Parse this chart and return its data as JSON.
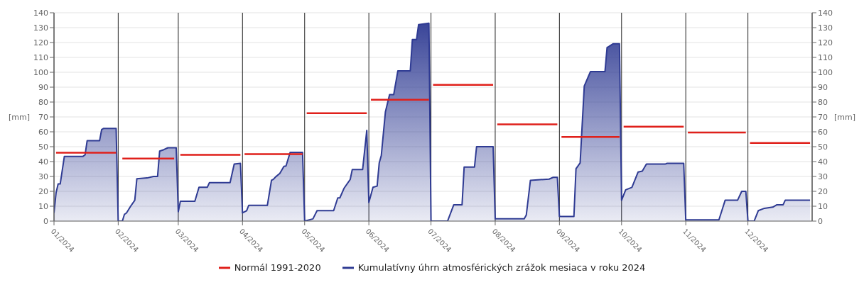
{
  "chart_data": {
    "type": "area",
    "ylabel": "[mm]",
    "y2label": "[mm]",
    "xlim": [
      "2024-01-01",
      "2025-01-01"
    ],
    "xticks": [
      {
        "value": "2024-01-01",
        "label": "01/2024"
      },
      {
        "value": "2024-02-01",
        "label": "02/2024"
      },
      {
        "value": "2024-03-01",
        "label": "03/2024"
      },
      {
        "value": "2024-04-01",
        "label": "04/2024"
      },
      {
        "value": "2024-05-01",
        "label": "05/2024"
      },
      {
        "value": "2024-06-01",
        "label": "06/2024"
      },
      {
        "value": "2024-07-01",
        "label": "07/2024"
      },
      {
        "value": "2024-08-01",
        "label": "08/2024"
      },
      {
        "value": "2024-09-01",
        "label": "09/2024"
      },
      {
        "value": "2024-10-01",
        "label": "10/2024"
      },
      {
        "value": "2024-11-01",
        "label": "11/2024"
      },
      {
        "value": "2024-12-01",
        "label": "12/2024"
      }
    ],
    "ylim": [
      0,
      140
    ],
    "yticks": [
      0,
      10,
      20,
      30,
      40,
      50,
      60,
      70,
      80,
      90,
      100,
      110,
      120,
      130,
      140
    ],
    "y2lim": [
      0,
      140
    ],
    "y2ticks": [
      0,
      10,
      20,
      30,
      40,
      50,
      60,
      70,
      80,
      90,
      100,
      110,
      120,
      130,
      140
    ],
    "grid": true,
    "legend": "bottom",
    "marker": "none",
    "line_style": "solid",
    "series": [
      {
        "name": "Normál 1991-2020",
        "type": "line",
        "color": "#e0201b",
        "x": [
          "2024-01-02",
          "2024-01-31",
          "2024-02-01",
          "2024-02-03",
          "2024-02-28",
          "2024-03-01",
          "2024-03-02",
          "2024-03-31",
          "2024-04-01",
          "2024-04-02",
          "2024-04-30",
          "2024-05-01",
          "2024-05-02",
          "2024-05-31",
          "2024-06-01",
          "2024-06-02",
          "2024-06-30",
          "2024-07-01",
          "2024-07-02",
          "2024-07-31",
          "2024-08-01",
          "2024-08-02",
          "2024-08-31",
          "2024-09-01",
          "2024-09-02",
          "2024-09-30",
          "2024-10-01",
          "2024-10-02",
          "2024-10-31",
          "2024-11-01",
          "2024-11-02",
          "2024-11-30",
          "2024-12-01",
          "2024-12-02",
          "2024-12-31"
        ],
        "values": [
          46,
          46,
          null,
          42,
          42,
          null,
          44.5,
          44.5,
          null,
          45,
          45,
          null,
          72.5,
          72.5,
          null,
          81.5,
          81.5,
          null,
          91.5,
          91.5,
          null,
          65,
          65,
          null,
          56.5,
          56.5,
          null,
          63.5,
          63.5,
          null,
          59.5,
          59.5,
          null,
          52.5,
          52.5
        ]
      },
      {
        "name": "Kumulatívny úhrn atmosférických zrážok mesiaca v roku 2024",
        "color": "#2f3b93",
        "x": [
          "2024-01-01",
          "2024-01-02",
          "2024-01-03",
          "2024-01-04",
          "2024-01-06",
          "2024-01-15",
          "2024-01-16",
          "2024-01-17",
          "2024-01-23",
          "2024-01-24",
          "2024-01-25",
          "2024-01-31",
          "2024-02-01",
          "2024-02-03",
          "2024-02-04",
          "2024-02-05",
          "2024-02-07",
          "2024-02-09",
          "2024-02-10",
          "2024-02-15",
          "2024-02-18",
          "2024-02-20",
          "2024-02-21",
          "2024-02-23",
          "2024-02-25",
          "2024-02-29",
          "2024-03-01",
          "2024-03-02",
          "2024-03-09",
          "2024-03-11",
          "2024-03-15",
          "2024-03-16",
          "2024-03-26",
          "2024-03-28",
          "2024-03-31",
          "2024-04-01",
          "2024-04-03",
          "2024-04-04",
          "2024-04-13",
          "2024-04-15",
          "2024-04-16",
          "2024-04-17",
          "2024-04-19",
          "2024-04-21",
          "2024-04-22",
          "2024-04-24",
          "2024-04-30",
          "2024-05-01",
          "2024-05-05",
          "2024-05-07",
          "2024-05-15",
          "2024-05-17",
          "2024-05-18",
          "2024-05-20",
          "2024-05-23",
          "2024-05-24",
          "2024-05-29",
          "2024-05-31",
          "2024-06-01",
          "2024-06-03",
          "2024-06-05",
          "2024-06-06",
          "2024-06-07",
          "2024-06-09",
          "2024-06-11",
          "2024-06-13",
          "2024-06-15",
          "2024-06-21",
          "2024-06-22",
          "2024-06-24",
          "2024-06-25",
          "2024-06-30",
          "2024-07-01",
          "2024-07-09",
          "2024-07-12",
          "2024-07-16",
          "2024-07-17",
          "2024-07-22",
          "2024-07-23",
          "2024-07-31",
          "2024-08-01",
          "2024-08-15",
          "2024-08-16",
          "2024-08-18",
          "2024-08-27",
          "2024-08-29",
          "2024-08-31",
          "2024-09-01",
          "2024-09-08",
          "2024-09-09",
          "2024-09-11",
          "2024-09-13",
          "2024-09-16",
          "2024-09-23",
          "2024-09-24",
          "2024-09-25",
          "2024-09-27",
          "2024-09-30",
          "2024-10-01",
          "2024-10-03",
          "2024-10-06",
          "2024-10-09",
          "2024-10-11",
          "2024-10-13",
          "2024-10-22",
          "2024-10-23",
          "2024-10-31",
          "2024-11-01",
          "2024-11-17",
          "2024-11-20",
          "2024-11-26",
          "2024-11-28",
          "2024-11-30",
          "2024-12-01",
          "2024-12-04",
          "2024-12-06",
          "2024-12-09",
          "2024-12-13",
          "2024-12-15",
          "2024-12-18",
          "2024-12-19",
          "2024-12-31"
        ],
        "values": [
          5.5,
          19,
          25,
          25,
          43.5,
          43.5,
          44.5,
          54,
          54,
          61.5,
          62.3,
          62.3,
          0,
          0,
          4.5,
          5.5,
          10,
          14,
          28.5,
          29,
          30,
          30,
          47,
          48,
          49.3,
          49.3,
          6.3,
          13.3,
          13.3,
          22.7,
          22.7,
          25.8,
          25.8,
          38.3,
          38.8,
          5.5,
          7,
          10.6,
          10.6,
          27.4,
          28.2,
          29.7,
          32,
          36.8,
          37,
          46.2,
          46.2,
          0,
          1.5,
          7,
          7,
          15.6,
          15.6,
          22,
          28,
          34.7,
          34.7,
          61,
          12.5,
          22.7,
          23.5,
          39,
          44,
          73.5,
          85,
          85,
          101,
          101,
          122,
          122,
          132,
          133,
          0,
          0,
          11,
          11,
          36.3,
          36.3,
          50,
          50,
          1.5,
          1.5,
          4,
          27.4,
          28.2,
          29.4,
          29.4,
          3.1,
          3.1,
          35.2,
          39.1,
          90.8,
          100.5,
          100.5,
          116.6,
          117.4,
          119.2,
          119.2,
          14,
          21,
          22.7,
          33,
          33.6,
          38.3,
          38.3,
          38.8,
          38.8,
          0.8,
          0.8,
          14,
          14,
          20,
          20,
          0,
          0,
          7,
          8.6,
          9.4,
          11,
          11,
          14,
          14
        ]
      }
    ]
  }
}
